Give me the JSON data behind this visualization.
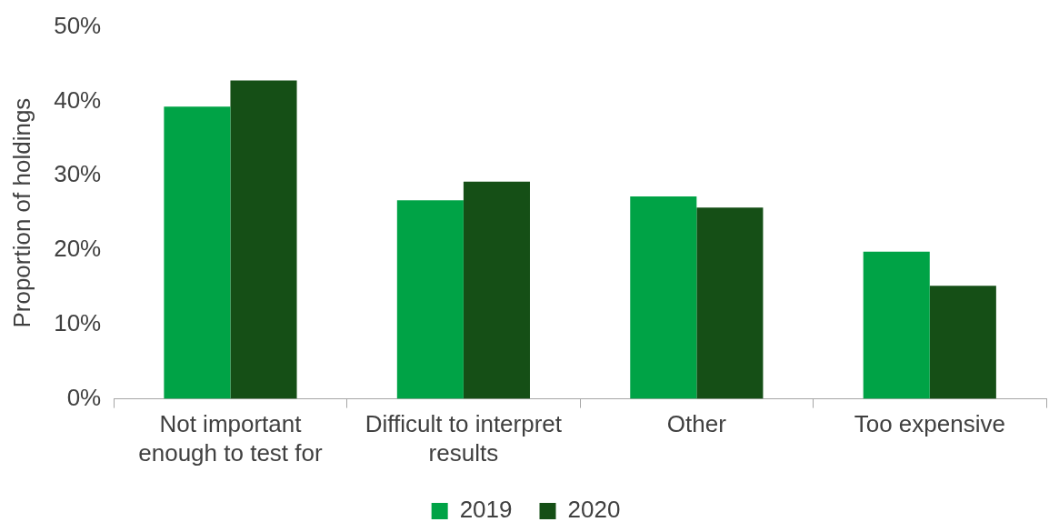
{
  "chart_data": {
    "type": "bar",
    "ylabel": "Proportion of holdings",
    "categories": [
      "Not important enough to test for",
      "Difficult to interpret results",
      "Other",
      "Too expensive"
    ],
    "series": [
      {
        "name": "2019",
        "color": "#00a346",
        "values": [
          39.3,
          26.7,
          27.2,
          19.8
        ]
      },
      {
        "name": "2020",
        "color": "#154f16",
        "values": [
          42.8,
          29.2,
          25.7,
          15.2
        ]
      }
    ],
    "ylim": [
      0,
      50
    ],
    "yticks": [
      {
        "value": 0,
        "label": "0%"
      },
      {
        "value": 10,
        "label": "10%"
      },
      {
        "value": 20,
        "label": "20%"
      },
      {
        "value": 30,
        "label": "30%"
      },
      {
        "value": 40,
        "label": "40%"
      },
      {
        "value": 50,
        "label": "50%"
      }
    ],
    "grid": false,
    "legend": "bottom"
  }
}
